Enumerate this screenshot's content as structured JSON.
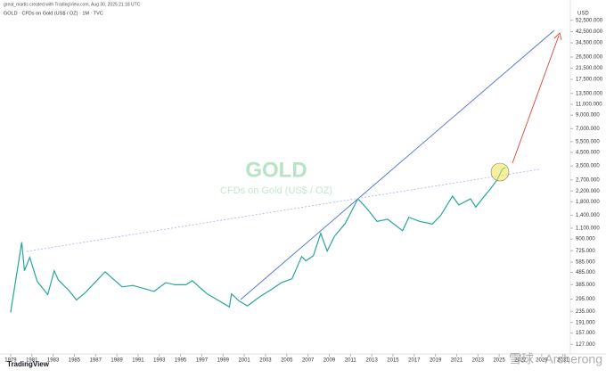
{
  "header": {
    "credit": "great_martis created with TradingView.com, Aug 30, 2025 21:18 UTC",
    "symbol": "GOLD · CFDs on Gold (US$ / OZ) · 1M · TVC"
  },
  "watermark": {
    "title": "GOLD",
    "subtitle": "CFDs on Gold (US$ / OZ)"
  },
  "footer": {
    "brand": "TradingView",
    "source": "雪球 · Archerong"
  },
  "chart_data": {
    "type": "line",
    "y_unit": "USD",
    "log_scale": true,
    "color": "#26a69a",
    "x": [
      1979.0,
      1980.05,
      1980.3,
      1980.8,
      1981.5,
      1982.5,
      1983.1,
      1983.5,
      1984.5,
      1985.2,
      1986.0,
      1987.9,
      1988.5,
      1989.5,
      1990.5,
      1991.5,
      1992.5,
      1993.6,
      1994.5,
      1995.5,
      1996.1,
      1997.5,
      1998.5,
      1999.6,
      1999.8,
      2000.5,
      2001.3,
      2002.5,
      2003.5,
      2004.5,
      2005.5,
      2006.4,
      2006.8,
      2007.5,
      2008.2,
      2008.8,
      2009.5,
      2010.5,
      2011.7,
      2012.5,
      2013.5,
      2014.5,
      2015.9,
      2016.5,
      2017.5,
      2018.7,
      2019.5,
      2020.6,
      2021.2,
      2022.3,
      2022.8,
      2023.5,
      2024.2,
      2024.8,
      2025.3,
      2025.6
    ],
    "values": [
      230,
      850,
      500,
      640,
      410,
      320,
      500,
      420,
      345,
      290,
      330,
      490,
      440,
      370,
      380,
      360,
      340,
      400,
      385,
      385,
      415,
      325,
      290,
      255,
      325,
      285,
      260,
      310,
      350,
      400,
      430,
      650,
      600,
      660,
      1000,
      720,
      950,
      1200,
      1900,
      1600,
      1250,
      1300,
      1050,
      1350,
      1250,
      1190,
      1400,
      2000,
      1700,
      1900,
      1630,
      1950,
      2300,
      2700,
      3300,
      3400
    ],
    "xlim": [
      1978,
      2031.7
    ],
    "xticks": [
      1979,
      1981,
      1983,
      1985,
      1987,
      1989,
      1991,
      1993,
      1995,
      1997,
      1999,
      2001,
      2003,
      2005,
      2007,
      2009,
      2011,
      2013,
      2015,
      2017,
      2019,
      2021,
      2023,
      2025,
      2027,
      2029,
      2031
    ],
    "ylim": [
      110,
      67000
    ],
    "yticks": [
      {
        "value": 52500,
        "label": "52,500.000"
      },
      {
        "value": 42500,
        "label": "42,500.000"
      },
      {
        "value": 34500,
        "label": "34,500.000"
      },
      {
        "value": 26500,
        "label": "26,500.000"
      },
      {
        "value": 21500,
        "label": "21,500.000"
      },
      {
        "value": 17500,
        "label": "17,500.000"
      },
      {
        "value": 13500,
        "label": "13,500.000"
      },
      {
        "value": 11000,
        "label": "11,000.000"
      },
      {
        "value": 9000,
        "label": "9,000.000"
      },
      {
        "value": 7000,
        "label": "7,000.000"
      },
      {
        "value": 5500,
        "label": "5,500.000"
      },
      {
        "value": 4500,
        "label": "4,500.000"
      },
      {
        "value": 3500,
        "label": "3,500.000"
      },
      {
        "value": 2700,
        "label": "2,700.000"
      },
      {
        "value": 2200,
        "label": "2,200.000"
      },
      {
        "value": 1800,
        "label": "1,800.000"
      },
      {
        "value": 1400,
        "label": "1,400.000"
      },
      {
        "value": 1100,
        "label": "1,100.000"
      },
      {
        "value": 900,
        "label": "900.000"
      },
      {
        "value": 725,
        "label": "725.000"
      },
      {
        "value": 585,
        "label": "585.000"
      },
      {
        "value": 485,
        "label": "485.000"
      },
      {
        "value": 385,
        "label": "385.000"
      },
      {
        "value": 295,
        "label": "295.000"
      },
      {
        "value": 235,
        "label": "235.000"
      },
      {
        "value": 191,
        "label": "191.000"
      },
      {
        "value": 157,
        "label": "157.000"
      },
      {
        "value": 127,
        "label": "127.000"
      }
    ]
  }
}
